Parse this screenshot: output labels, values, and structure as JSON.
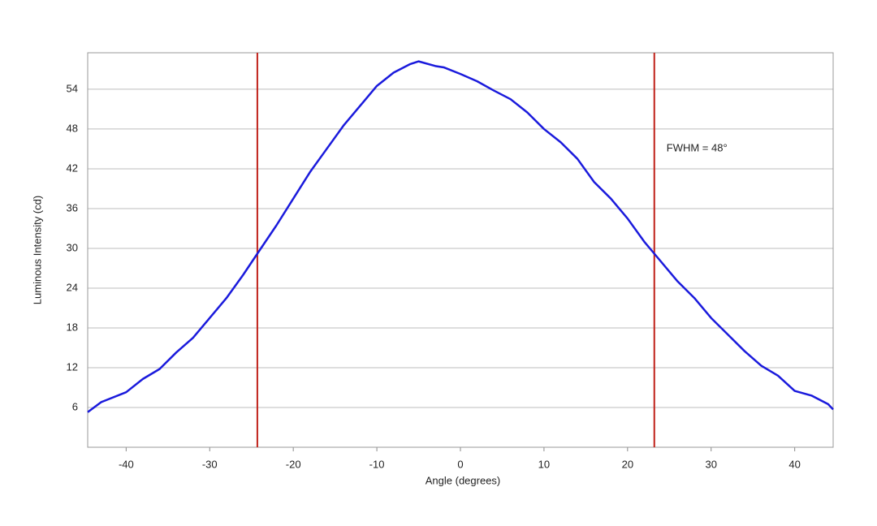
{
  "chart_data": {
    "type": "line",
    "x_label": "Angle (degrees)",
    "y_label": "Luminous Intensity (cd)",
    "annotation": "FWHM = 48°",
    "x": [
      -44.6,
      -43,
      -40,
      -38,
      -36,
      -34,
      -32,
      -30,
      -28,
      -26,
      -24.3,
      -22,
      -20,
      -18,
      -16,
      -14,
      -12,
      -10,
      -8,
      -6,
      -5,
      -3,
      -2,
      0,
      2,
      4,
      6,
      8,
      10,
      12,
      14,
      16,
      18,
      20,
      22,
      23.2,
      26,
      28,
      30,
      32,
      34,
      36,
      38,
      40,
      42,
      44,
      44.6
    ],
    "series": [
      {
        "color": "#1a1adc",
        "values": [
          5.3,
          6.8,
          8.3,
          10.3,
          11.8,
          14.3,
          16.5,
          19.5,
          22.5,
          26,
          29.2,
          33.5,
          37.5,
          41.5,
          45,
          48.5,
          51.5,
          54.5,
          56.5,
          57.8,
          58.2,
          57.5,
          57.3,
          56.3,
          55.2,
          53.8,
          52.5,
          50.5,
          48,
          46,
          43.5,
          40,
          37.5,
          34.5,
          31,
          29.2,
          25,
          22.5,
          19.5,
          17,
          14.5,
          12.3,
          10.8,
          8.5,
          7.8,
          6.5,
          5.7
        ]
      }
    ],
    "vlines": [
      -24.3,
      23.2
    ],
    "vline_color": "#c0221a",
    "xlim": [
      -44.6,
      44.6
    ],
    "ylim": [
      0,
      59.5
    ],
    "xticks": [
      -40,
      -30,
      -20,
      -10,
      0,
      10,
      20,
      30,
      40
    ],
    "yticks": [
      6,
      12,
      18,
      24,
      30,
      36,
      42,
      48,
      54
    ],
    "grid": true
  }
}
